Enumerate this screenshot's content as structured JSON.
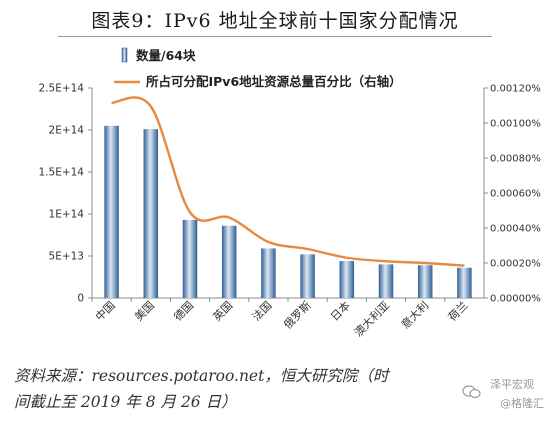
{
  "title": "图表9：IPv6 地址全球前十国家分配情况",
  "source_line1": "资料来源：resources.potaroo.net，恒大研究院（时",
  "source_line2": "间截止至 2019 年 8 月 26 日）",
  "watermark": {
    "line1": "泽平宏观",
    "line2": "@格隆汇"
  },
  "chart_data": {
    "type": "bar",
    "categories": [
      "中国",
      "美国",
      "德国",
      "英国",
      "法国",
      "俄罗斯",
      "日本",
      "澳大利亚",
      "意大利",
      "荷兰"
    ],
    "series": [
      {
        "name": "数量/64块",
        "type": "bar",
        "axis": "left",
        "values": [
          205000000000000.0,
          201000000000000.0,
          93000000000000.0,
          86000000000000.0,
          59000000000000.0,
          52000000000000.0,
          44000000000000.0,
          40000000000000.0,
          39000000000000.0,
          36000000000000.0
        ]
      },
      {
        "name": "所占可分配IPv6地址资源总量百分比（右轴）",
        "type": "line",
        "axis": "right",
        "values": [
          0.001115,
          0.001095,
          0.00049,
          0.00046,
          0.00032,
          0.00028,
          0.00023,
          0.00021,
          0.0002,
          0.000185
        ]
      }
    ],
    "left_axis": {
      "min": 0,
      "max": 250000000000000.0,
      "ticks": [
        "0",
        "5E+13",
        "1E+14",
        "1.5E+14",
        "2E+14",
        "2.5E+14"
      ]
    },
    "right_axis": {
      "min": 0,
      "max": 0.0012,
      "ticks": [
        "0.00000%",
        "0.00020%",
        "0.00040%",
        "0.00060%",
        "0.00080%",
        "0.00100%",
        "0.00120%"
      ]
    },
    "legend_position": "top-left",
    "colors": {
      "bar_dark": "#2f5f95",
      "bar_light": "#dce7f3",
      "line": "#e8893f",
      "axis": "#8c8c8c"
    }
  }
}
